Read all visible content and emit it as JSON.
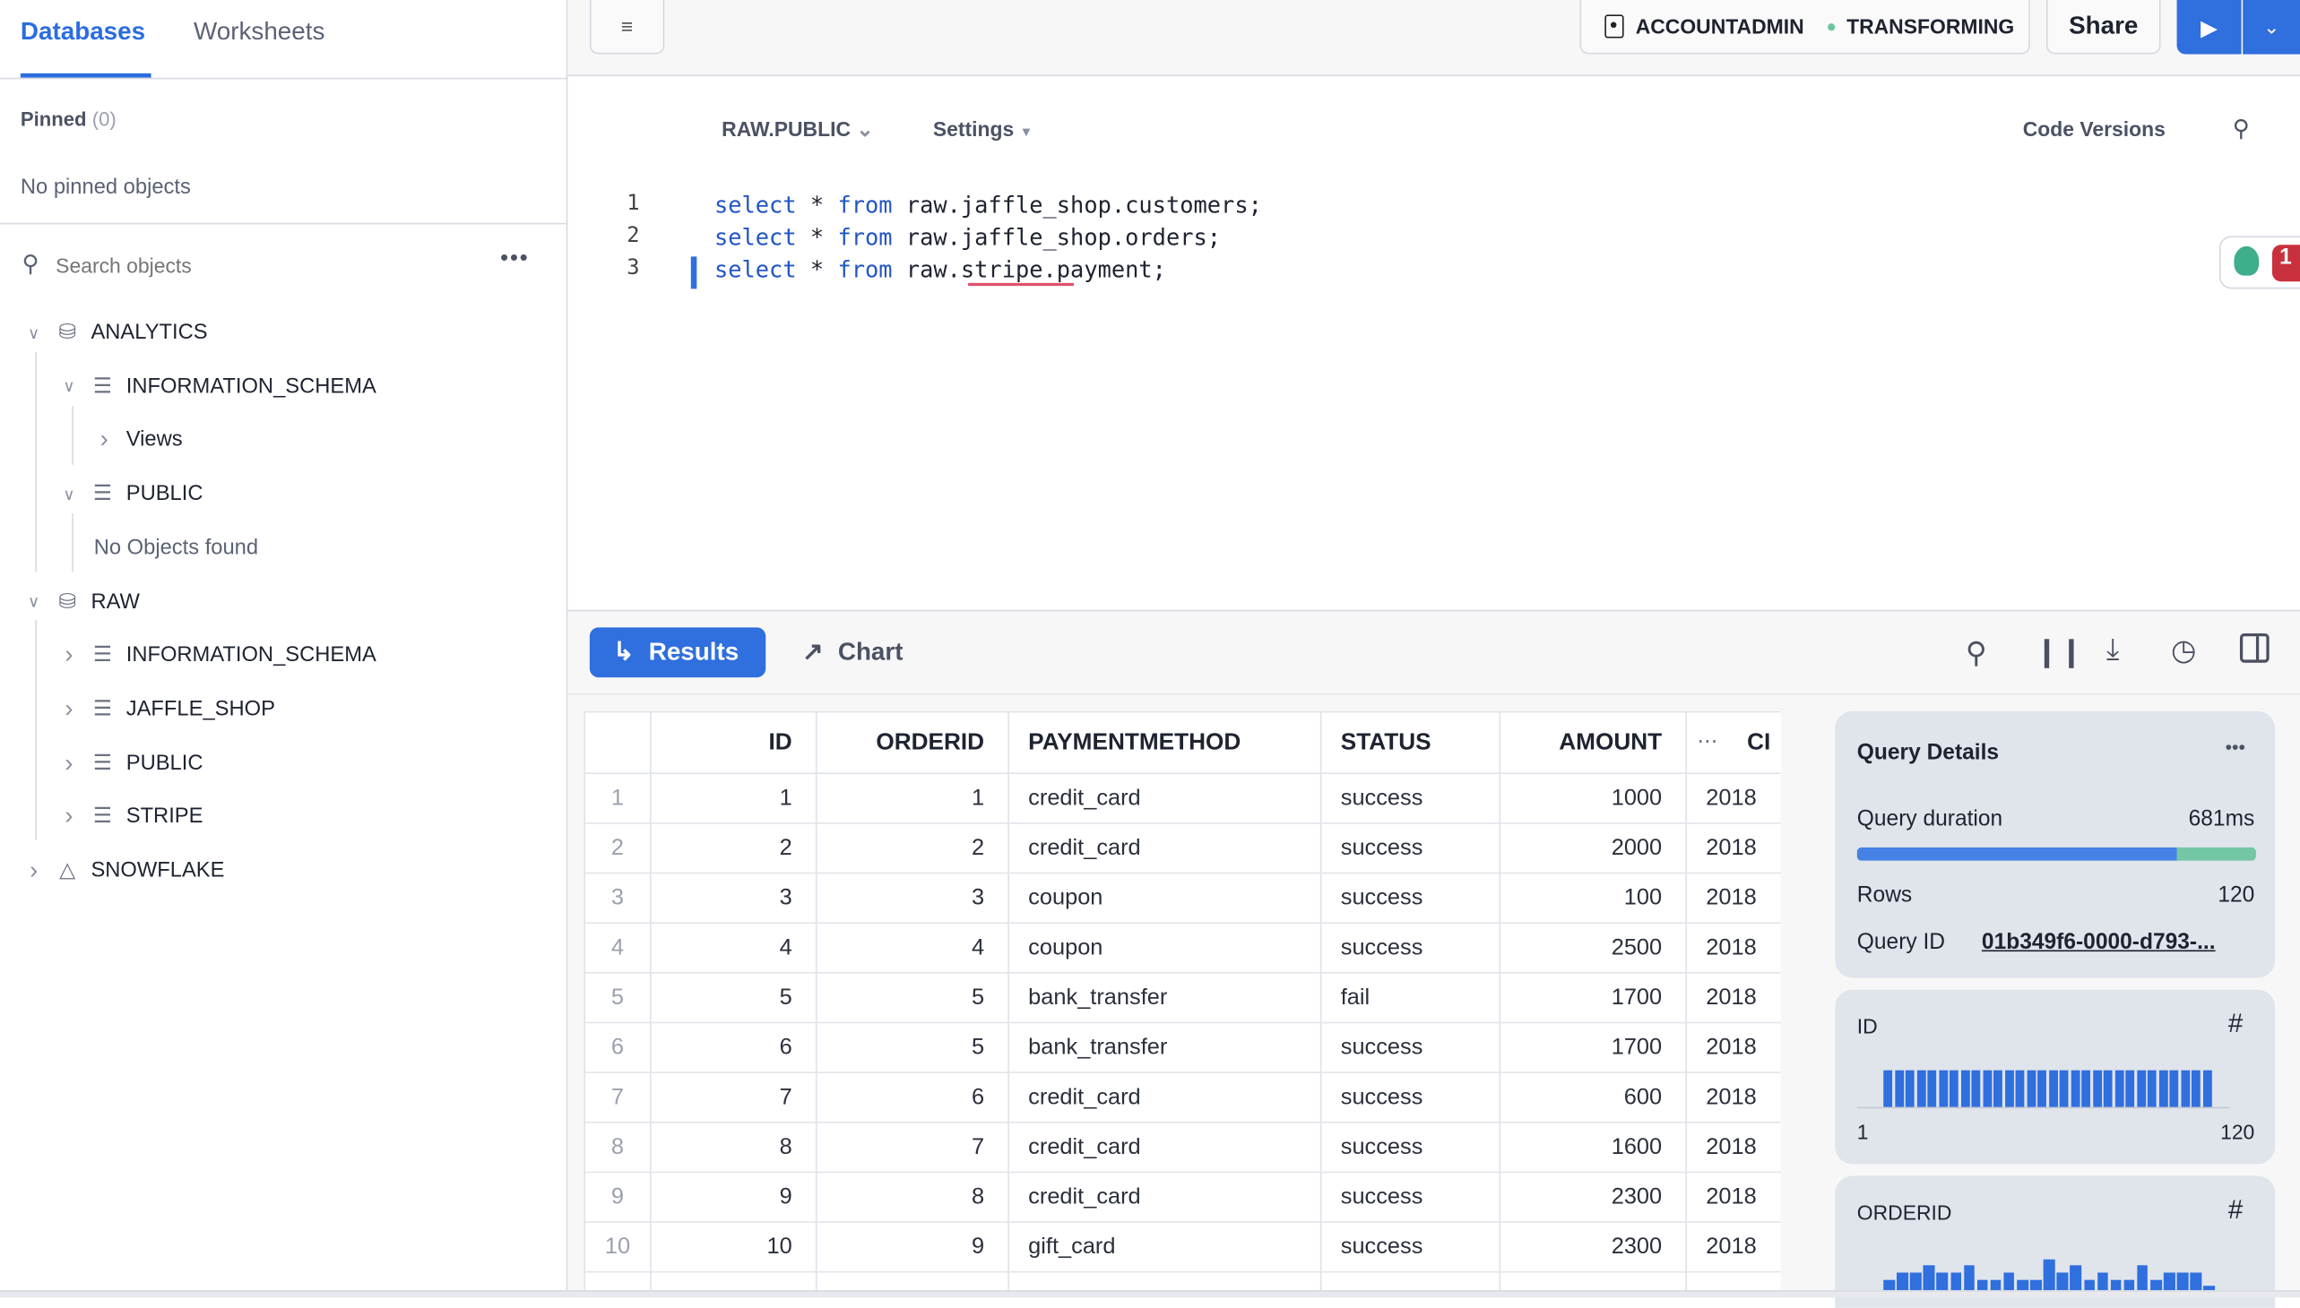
{
  "sidebar": {
    "tabs": [
      "Databases",
      "Worksheets"
    ],
    "pinned_label": "Pinned",
    "pinned_count": "(0)",
    "no_pinned": "No pinned objects",
    "search_placeholder": "Search objects",
    "tree": [
      {
        "label": "ANALYTICS",
        "level": 0,
        "expanded": true,
        "icon": "database-icon"
      },
      {
        "label": "INFORMATION_SCHEMA",
        "level": 1,
        "expanded": true,
        "icon": "schema-icon"
      },
      {
        "label": "Views",
        "level": 2,
        "expanded": false,
        "icon": ""
      },
      {
        "label": "PUBLIC",
        "level": 1,
        "expanded": true,
        "icon": "schema-icon"
      },
      {
        "label": "No Objects found",
        "level": 2,
        "expanded": null,
        "icon": ""
      },
      {
        "label": "RAW",
        "level": 0,
        "expanded": true,
        "icon": "database-icon"
      },
      {
        "label": "INFORMATION_SCHEMA",
        "level": 1,
        "expanded": false,
        "icon": "schema-icon"
      },
      {
        "label": "JAFFLE_SHOP",
        "level": 1,
        "expanded": false,
        "icon": "schema-icon"
      },
      {
        "label": "PUBLIC",
        "level": 1,
        "expanded": false,
        "icon": "schema-icon"
      },
      {
        "label": "STRIPE",
        "level": 1,
        "expanded": false,
        "icon": "schema-icon"
      },
      {
        "label": "SNOWFLAKE",
        "level": 0,
        "expanded": false,
        "icon": "snowflake-app-icon"
      }
    ]
  },
  "topbar": {
    "role": "ACCOUNTADMIN",
    "warehouse": "TRANSFORMING",
    "share": "Share",
    "status_color": "#6cc59f",
    "accent": "#2f6fde"
  },
  "editor": {
    "context": "RAW.PUBLIC",
    "settings": "Settings",
    "code_versions": "Code Versions",
    "lines": [
      {
        "n": "1",
        "kw1": "select",
        "mid": " * ",
        "kw2": "from",
        "rest": " raw.jaffle_shop.customers;"
      },
      {
        "n": "2",
        "kw1": "select",
        "mid": " * ",
        "kw2": "from",
        "rest": " raw.jaffle_shop.orders;"
      },
      {
        "n": "3",
        "kw1": "select",
        "mid": " * ",
        "kw2": "from",
        "rest": " raw.stripe.payment;"
      }
    ],
    "notification_count": "1"
  },
  "results": {
    "tabs": [
      "Results",
      "Chart"
    ],
    "columns": [
      "ID",
      "ORDERID",
      "PAYMENTMETHOD",
      "STATUS",
      "AMOUNT",
      "CI"
    ],
    "rows": [
      [
        "1",
        "1",
        "1",
        "credit_card",
        "success",
        "1000",
        "2018"
      ],
      [
        "2",
        "2",
        "2",
        "credit_card",
        "success",
        "2000",
        "2018"
      ],
      [
        "3",
        "3",
        "3",
        "coupon",
        "success",
        "100",
        "2018"
      ],
      [
        "4",
        "4",
        "4",
        "coupon",
        "success",
        "2500",
        "2018"
      ],
      [
        "5",
        "5",
        "5",
        "bank_transfer",
        "fail",
        "1700",
        "2018"
      ],
      [
        "6",
        "6",
        "5",
        "bank_transfer",
        "success",
        "1700",
        "2018"
      ],
      [
        "7",
        "7",
        "6",
        "credit_card",
        "success",
        "600",
        "2018"
      ],
      [
        "8",
        "8",
        "7",
        "credit_card",
        "success",
        "1600",
        "2018"
      ],
      [
        "9",
        "9",
        "8",
        "credit_card",
        "success",
        "2300",
        "2018"
      ],
      [
        "10",
        "10",
        "9",
        "gift_card",
        "success",
        "2300",
        "2018"
      ]
    ]
  },
  "details": {
    "title": "Query Details",
    "duration_label": "Query duration",
    "duration": "681ms",
    "duration_split": 0.8,
    "rows_label": "Rows",
    "rows": "120",
    "qid_label": "Query ID",
    "qid": "01b349f6-0000-d793-...",
    "id_card": {
      "title": "ID",
      "min": "1",
      "max": "120",
      "bars": [
        1,
        1,
        1,
        1,
        1,
        1,
        1,
        1,
        1,
        1,
        1,
        1,
        1,
        1,
        1,
        1,
        1,
        1,
        1,
        1,
        1,
        1,
        1,
        1,
        1,
        1,
        1,
        1,
        1,
        1
      ]
    },
    "orderid_card": {
      "title": "ORDERID",
      "bars": [
        2,
        3,
        3,
        4,
        3,
        3,
        4,
        2,
        2,
        3,
        2,
        2,
        5,
        3,
        4,
        2,
        3,
        2,
        2,
        4,
        2,
        3,
        3,
        3,
        1
      ]
    }
  }
}
